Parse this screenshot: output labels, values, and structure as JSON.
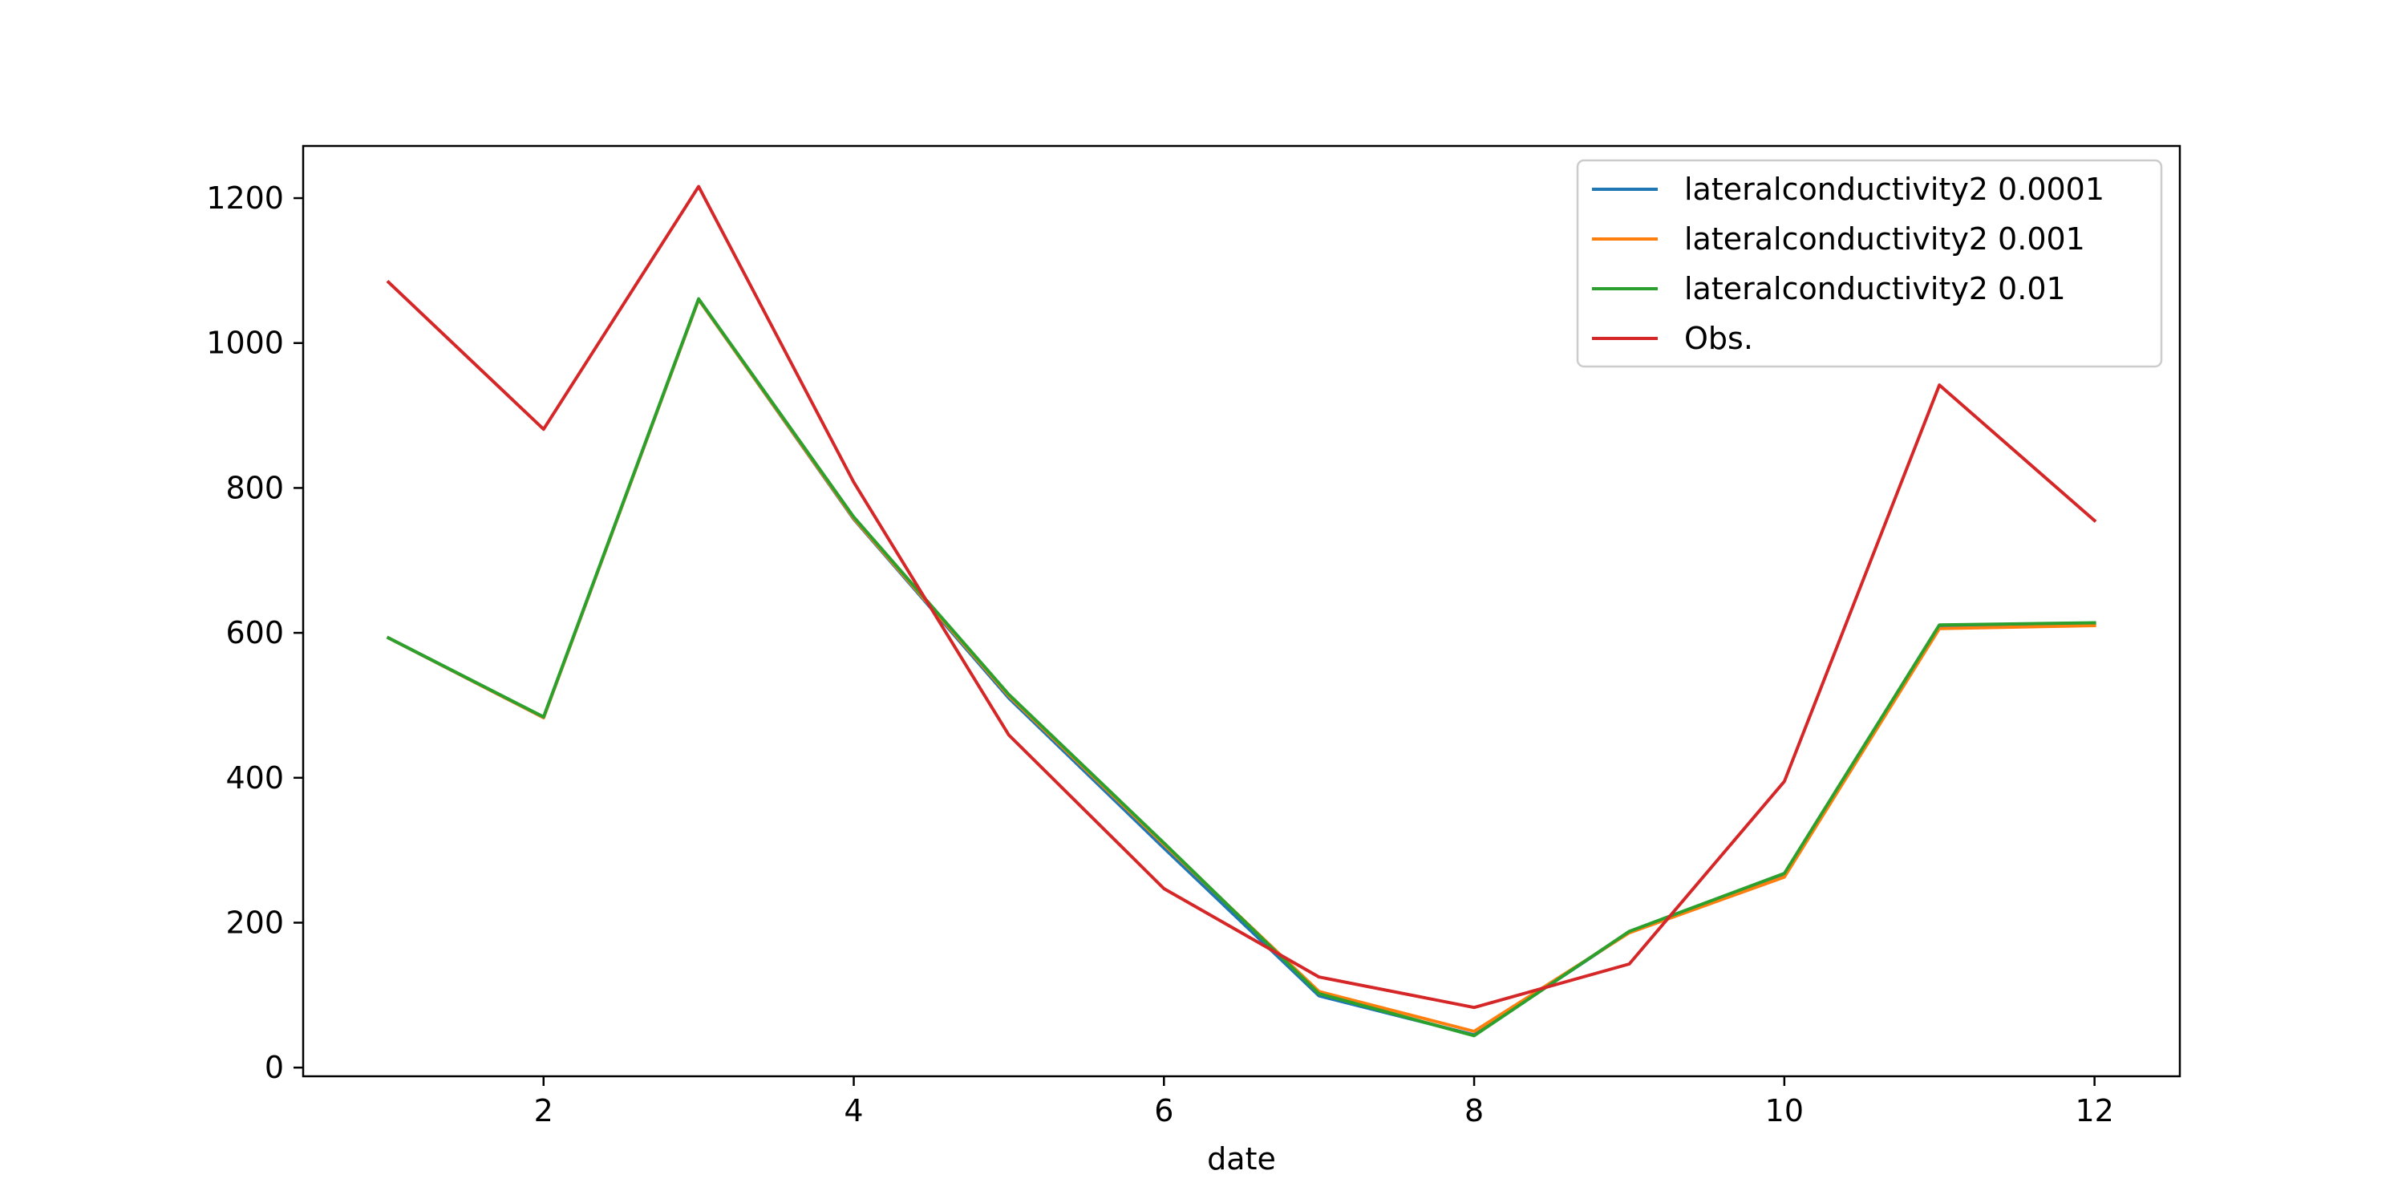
{
  "chart_data": {
    "type": "line",
    "title": "",
    "xlabel": "date",
    "ylabel": "",
    "x": [
      1,
      2,
      3,
      4,
      5,
      6,
      7,
      8,
      9,
      10,
      11,
      12
    ],
    "xlim": [
      0.45,
      12.55
    ],
    "ylim": [
      -12,
      1272
    ],
    "xticks": [
      2,
      4,
      6,
      8,
      10,
      12
    ],
    "yticks": [
      0,
      200,
      400,
      600,
      800,
      1000,
      1200
    ],
    "grid": false,
    "legend_position": "top-right",
    "series": [
      {
        "name": "lateralconductivity2 0.0001",
        "color": "#1f77b4",
        "values": [
          593,
          483,
          1060,
          757,
          510,
          303,
          99,
          45,
          187,
          266,
          610,
          612
        ]
      },
      {
        "name": "lateralconductivity2 0.001",
        "color": "#ff7f0e",
        "values": [
          593,
          483,
          1060,
          758,
          513,
          308,
          105,
          50,
          186,
          263,
          606,
          610
        ]
      },
      {
        "name": "lateralconductivity2 0.01",
        "color": "#2ca02c",
        "values": [
          593,
          484,
          1061,
          760,
          515,
          310,
          102,
          44,
          188,
          268,
          611,
          614
        ]
      },
      {
        "name": "Obs.",
        "color": "#d62728",
        "values": [
          1084,
          881,
          1216,
          808,
          459,
          247,
          125,
          83,
          143,
          395,
          942,
          755
        ]
      }
    ]
  }
}
